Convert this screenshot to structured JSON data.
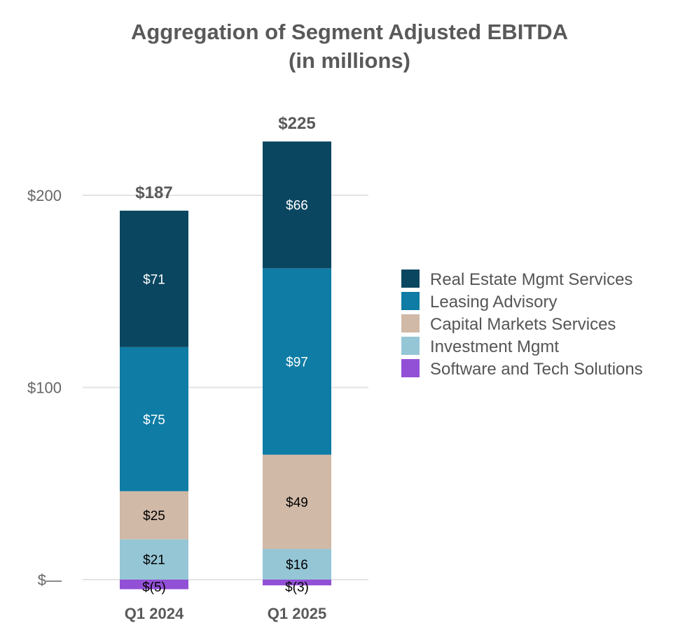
{
  "chart_data": {
    "type": "bar",
    "stacked": true,
    "title": "Aggregation of Segment Adjusted EBITDA",
    "subtitle": "(in millions)",
    "categories": [
      "Q1 2024",
      "Q1 2025"
    ],
    "totals": [
      187,
      225
    ],
    "total_labels": [
      "$187",
      "$225"
    ],
    "series": [
      {
        "name": "Investment Mgmt",
        "color": "#95c6d6",
        "label_color": "#000000",
        "values": [
          21,
          16
        ],
        "labels": [
          "$21",
          "$16"
        ]
      },
      {
        "name": "Capital Markets Services",
        "color": "#d1b9a7",
        "label_color": "#000000",
        "values": [
          25,
          49
        ],
        "labels": [
          "$25",
          "$49"
        ]
      },
      {
        "name": "Leasing Advisory",
        "color": "#0e7ca4",
        "label_color": "#ffffff",
        "values": [
          75,
          97
        ],
        "labels": [
          "$75",
          "$97"
        ]
      },
      {
        "name": "Real Estate Mgmt Services",
        "color": "#0b4660",
        "label_color": "#ffffff",
        "values": [
          71,
          66
        ],
        "labels": [
          "$71",
          "$66"
        ]
      },
      {
        "name": "Software and Tech Solutions",
        "color": "#9250d6",
        "label_color": "#000000",
        "values": [
          -5,
          -3
        ],
        "labels": [
          "$(5)",
          "$(3)"
        ]
      }
    ],
    "legend_order": [
      "Real Estate Mgmt Services",
      "Leasing Advisory",
      "Capital Markets Services",
      "Investment Mgmt",
      "Software and Tech Solutions"
    ],
    "yticks": [
      0,
      100,
      200
    ],
    "ytick_labels": [
      "$—",
      "$100",
      "$200"
    ],
    "ylim": [
      -5,
      230
    ],
    "grid": true,
    "legend_placement": "right"
  }
}
